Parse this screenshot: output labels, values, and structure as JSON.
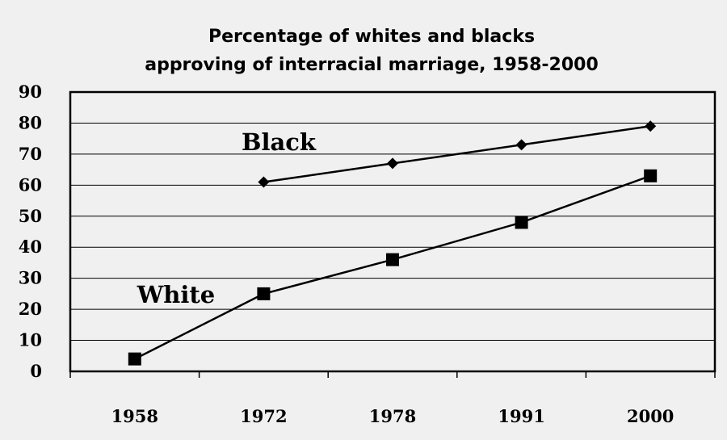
{
  "chart_data": {
    "type": "line",
    "title_lines": [
      "Percentage of whites and blacks",
      "approving of interracial marriage, 1958-2000"
    ],
    "categories": [
      "1958",
      "1972",
      "1978",
      "1991",
      "2000"
    ],
    "ylim": [
      0,
      90
    ],
    "yticks": [
      0,
      10,
      20,
      30,
      40,
      50,
      60,
      70,
      80,
      90
    ],
    "grid": true,
    "series": [
      {
        "name": "Black",
        "marker": "diamond",
        "values": [
          null,
          61,
          67,
          73,
          79
        ]
      },
      {
        "name": "White",
        "marker": "square",
        "values": [
          4,
          25,
          36,
          48,
          63
        ]
      }
    ],
    "colors": {
      "line": "#000000",
      "grid": "#000000",
      "background": "#f0f0f0"
    }
  }
}
